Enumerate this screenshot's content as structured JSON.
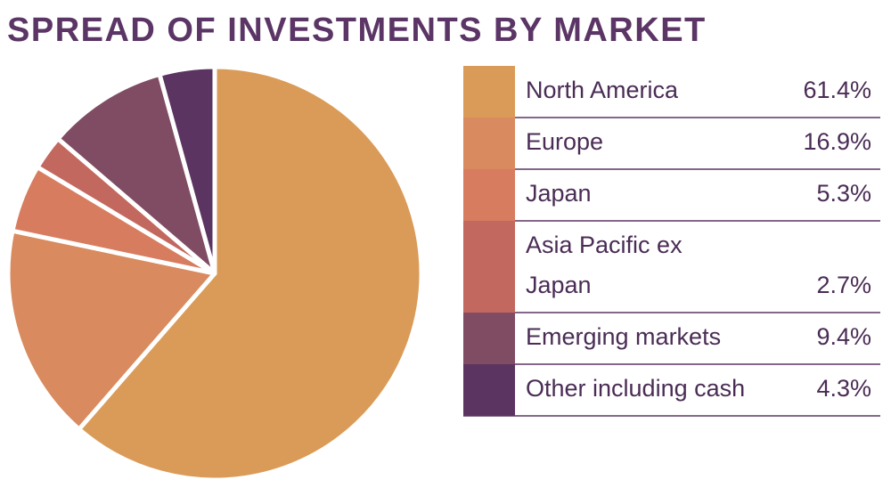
{
  "chart_data": {
    "type": "pie",
    "title": "SPREAD OF INVESTMENTS BY MARKET",
    "categories": [
      "North America",
      "Europe",
      "Japan",
      "Asia Pacific ex Japan",
      "Emerging markets",
      "Other including cash"
    ],
    "values": [
      61.4,
      16.9,
      5.3,
      2.7,
      9.4,
      4.3
    ],
    "value_labels": [
      "61.4%",
      "16.9%",
      "5.3%",
      "2.7%",
      "9.4%",
      "4.3%"
    ],
    "colors": [
      "#da9b58",
      "#d98a5e",
      "#d77c5f",
      "#c3685f",
      "#804c63",
      "#5b3461"
    ]
  }
}
